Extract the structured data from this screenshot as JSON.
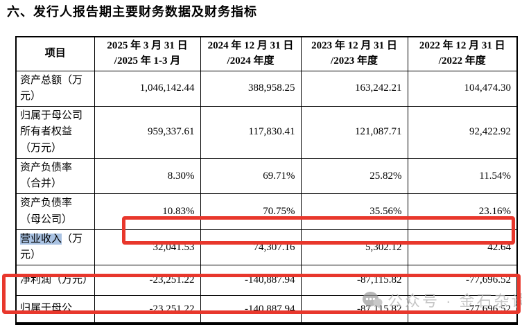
{
  "page": {
    "title": "六、发行人报告期主要财务数据及财务指标"
  },
  "table": {
    "header": {
      "item_label": "项目",
      "periods": [
        {
          "line1": "2025 年 3 月 31 日",
          "line2": "/2025 年 1-3 月"
        },
        {
          "line1": "2024 年 12 月 31 日",
          "line2": "/2024 年度"
        },
        {
          "line1": "2023 年 12 月 31 日",
          "line2": "/2023 年度"
        },
        {
          "line1": "2022 年 12 月 31 日",
          "line2": "/2022 年度"
        }
      ]
    },
    "rows": [
      {
        "label_parts": [
          {
            "text": "资产总额（万元）",
            "selected": false
          }
        ],
        "values": [
          "1,046,142.44",
          "388,958.25",
          "163,242.21",
          "104,474.30"
        ]
      },
      {
        "label_parts": [
          {
            "text": "归属于母公司所有者权益（万元）",
            "selected": false
          }
        ],
        "values": [
          "959,337.61",
          "117,830.41",
          "121,087.71",
          "92,422.92"
        ]
      },
      {
        "label_parts": [
          {
            "text": "资产负债率（合并）",
            "selected": false
          }
        ],
        "values": [
          "8.30%",
          "69.71%",
          "25.82%",
          "11.54%"
        ]
      },
      {
        "label_parts": [
          {
            "text": "资产负债率（母公司）",
            "selected": false
          }
        ],
        "values": [
          "10.83%",
          "70.75%",
          "35.56%",
          "23.16%"
        ]
      },
      {
        "label_parts": [
          {
            "text": "营业收入",
            "selected": true
          },
          {
            "text": "（万元）",
            "selected": false
          }
        ],
        "values": [
          "32,041.53",
          "74,307.16",
          "5,302.12",
          "42.64"
        ]
      },
      {
        "label_parts": [
          {
            "text": "净利润（万元）",
            "selected": false
          }
        ],
        "values": [
          "-23,251.22",
          "-140,887.94",
          "-87,115.82",
          "-77,696.52"
        ]
      },
      {
        "label_parts": [
          {
            "text": "归属于母公",
            "selected": false
          }
        ],
        "values": [
          "-23,251.22",
          "-140,887.94",
          "-87,115.82",
          "-77,696.52"
        ]
      }
    ]
  },
  "annotations": {
    "red_box_color": "#e8372c",
    "selection_color": "#a9c2e2"
  },
  "watermark": {
    "icon": "wechat-icon",
    "text": "公众号 · 金石杂谈",
    "color": "#b9b9b9"
  }
}
